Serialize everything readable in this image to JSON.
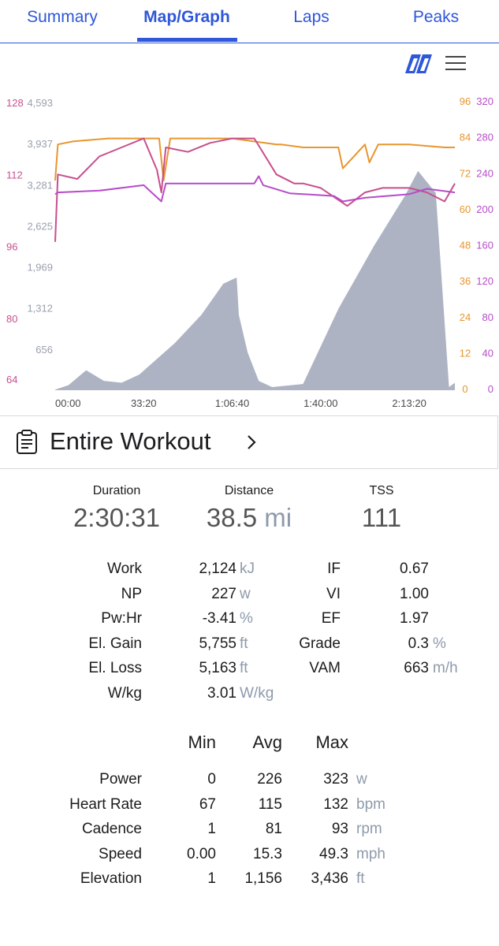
{
  "tabs": [
    {
      "label": "Summary"
    },
    {
      "label": "Map/Graph"
    },
    {
      "label": "Laps"
    },
    {
      "label": "Peaks"
    }
  ],
  "icons": {
    "logo": "trainingpeaks-logo-icon",
    "menu": "hamburger-menu-icon",
    "clipboard": "clipboard-icon",
    "chevron": "chevron-right-icon"
  },
  "colors": {
    "accent": "#2f57d8",
    "power": "#b64cc8",
    "heart_rate": "#c84f8f",
    "cadence": "#e8962e",
    "elevation": "#a9afbf"
  },
  "chart_data": {
    "type": "line",
    "x_ticks": [
      "00:00",
      "33:20",
      "1:06:40",
      "1:40:00",
      "2:13:20"
    ],
    "x_range_seconds": [
      0,
      9031
    ],
    "axes": {
      "heart_rate": {
        "ticks": [
          "128",
          "112",
          "96",
          "80",
          "64"
        ],
        "range": [
          64,
          128
        ]
      },
      "elevation": {
        "ticks": [
          "4,593",
          "3,937",
          "3,281",
          "2,625",
          "1,969",
          "1,312",
          "656"
        ],
        "range": [
          0,
          4593
        ]
      },
      "cadence": {
        "ticks": [
          "96",
          "84",
          "72",
          "60",
          "48",
          "36",
          "24",
          "12",
          "0"
        ],
        "range": [
          0,
          96
        ]
      },
      "power": {
        "ticks": [
          "320",
          "280",
          "240",
          "200",
          "160",
          "120",
          "80",
          "40",
          "0"
        ],
        "range": [
          0,
          320
        ]
      }
    },
    "series": [
      {
        "key": "elevation",
        "x": [
          0,
          300,
          700,
          1100,
          1500,
          1900,
          2300,
          2700,
          3300,
          3800,
          4100,
          4150,
          4350,
          4600,
          4900,
          5600,
          6400,
          7200,
          7900,
          8200,
          8600,
          8900,
          9031
        ],
        "y": [
          10,
          80,
          320,
          150,
          120,
          250,
          500,
          750,
          1200,
          1700,
          1800,
          1200,
          600,
          150,
          50,
          100,
          1300,
          2300,
          3100,
          3500,
          3150,
          50,
          120
        ]
      },
      {
        "key": "cadence",
        "x": [
          0,
          60,
          400,
          1200,
          2000,
          2350,
          2450,
          2600,
          3200,
          4000,
          5000,
          5100,
          5600,
          6400,
          6500,
          7000,
          7100,
          7300,
          8000,
          8800,
          9031
        ],
        "y": [
          70,
          82,
          83,
          84,
          84,
          84,
          70,
          84,
          84,
          84,
          82,
          82,
          81,
          81,
          74,
          82,
          76,
          82,
          82,
          81,
          81
        ]
      },
      {
        "key": "heart_rate",
        "x": [
          0,
          60,
          500,
          1000,
          1500,
          2000,
          2300,
          2400,
          2500,
          3000,
          3500,
          4000,
          4500,
          5000,
          5400,
          5600,
          6000,
          6600,
          7000,
          7400,
          8000,
          8400,
          8800,
          9031
        ],
        "y": [
          97,
          112,
          111,
          116,
          118,
          120,
          113,
          108,
          118,
          117,
          119,
          120,
          120,
          112,
          110,
          110,
          109,
          105,
          108,
          109,
          109,
          108,
          106,
          110
        ]
      },
      {
        "key": "power",
        "x": [
          0,
          60,
          1000,
          2000,
          2400,
          2500,
          2700,
          4500,
          4600,
          4700,
          5300,
          6300,
          6500,
          7000,
          8000,
          8400,
          9031
        ],
        "y": [
          218,
          220,
          222,
          228,
          210,
          230,
          230,
          230,
          238,
          228,
          219,
          216,
          210,
          214,
          218,
          224,
          220
        ]
      }
    ]
  },
  "workout": {
    "title": "Entire Workout"
  },
  "summary": [
    {
      "label": "Duration",
      "value": "2:30:31",
      "unit": ""
    },
    {
      "label": "Distance",
      "value": "38.5",
      "unit": "mi"
    },
    {
      "label": "TSS",
      "value": "111",
      "unit": ""
    }
  ],
  "stats_left": [
    {
      "label": "Work",
      "value": "2,124",
      "unit": "kJ"
    },
    {
      "label": "NP",
      "value": "227",
      "unit": "w"
    },
    {
      "label": "Pw:Hr",
      "value": "-3.41",
      "unit": "%"
    },
    {
      "label": "El. Gain",
      "value": "5,755",
      "unit": "ft"
    },
    {
      "label": "El. Loss",
      "value": "5,163",
      "unit": "ft"
    },
    {
      "label": "W/kg",
      "value": "3.01",
      "unit": "W/kg"
    }
  ],
  "stats_right": [
    {
      "label": "IF",
      "value": "0.67",
      "unit": ""
    },
    {
      "label": "VI",
      "value": "1.00",
      "unit": ""
    },
    {
      "label": "EF",
      "value": "1.97",
      "unit": ""
    },
    {
      "label": "Grade",
      "value": "0.3",
      "unit": "%"
    },
    {
      "label": "VAM",
      "value": "663",
      "unit": "m/h"
    }
  ],
  "table": {
    "headers": [
      "Min",
      "Avg",
      "Max"
    ],
    "rows": [
      {
        "label": "Power",
        "min": "0",
        "avg": "226",
        "max": "323",
        "unit": "w"
      },
      {
        "label": "Heart Rate",
        "min": "67",
        "avg": "115",
        "max": "132",
        "unit": "bpm"
      },
      {
        "label": "Cadence",
        "min": "1",
        "avg": "81",
        "max": "93",
        "unit": "rpm"
      },
      {
        "label": "Speed",
        "min": "0.00",
        "avg": "15.3",
        "max": "49.3",
        "unit": "mph"
      },
      {
        "label": "Elevation",
        "min": "1",
        "avg": "1,156",
        "max": "3,436",
        "unit": "ft"
      }
    ]
  }
}
